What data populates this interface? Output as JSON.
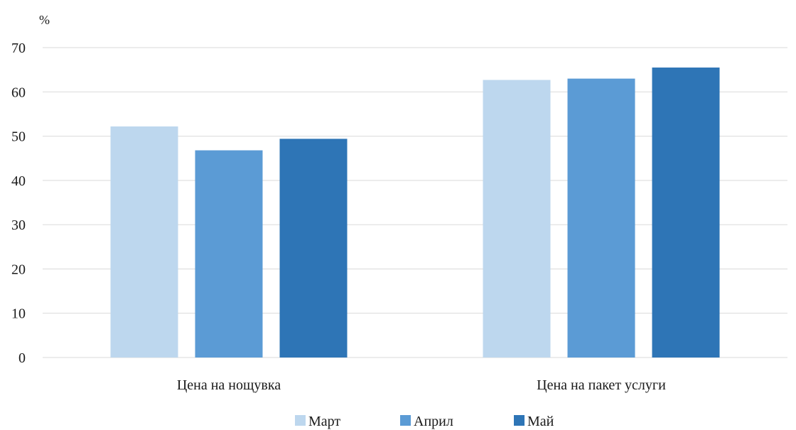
{
  "chart_data": {
    "type": "bar",
    "unit": "%",
    "categories": [
      "Цена на нощувка",
      "Цена на пакет услуги"
    ],
    "series": [
      {
        "name": "Март",
        "color": "#bdd7ee",
        "values": [
          52.2,
          62.7
        ]
      },
      {
        "name": "Април",
        "color": "#5b9bd5",
        "values": [
          46.8,
          63.0
        ]
      },
      {
        "name": "Май",
        "color": "#2e75b6",
        "values": [
          49.4,
          65.5
        ]
      }
    ],
    "ylim": [
      0,
      70
    ],
    "yticks": [
      0,
      10,
      20,
      30,
      40,
      50,
      60,
      70
    ],
    "grid": true,
    "legend_position": "bottom"
  }
}
